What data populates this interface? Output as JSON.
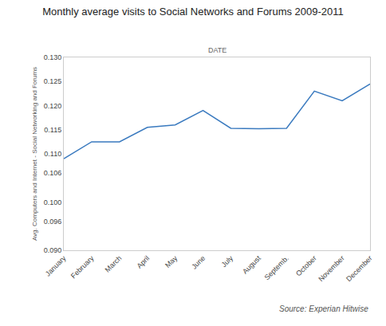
{
  "chart_data": {
    "type": "line",
    "title": "Monthly average visits to Social Networks and Forums 2009-2011",
    "xlabel": "DATE",
    "ylabel": "Avg. Computers and Internet - Social Networking and Forums",
    "annotations": [
      "Source: Experian Hitwise"
    ],
    "categories": [
      "January",
      "February",
      "March",
      "April",
      "May",
      "June",
      "July",
      "August",
      "Septemb.",
      "October",
      "November",
      "December"
    ],
    "values": [
      0.109,
      0.1125,
      0.1125,
      0.1155,
      0.116,
      0.119,
      0.1153,
      0.1152,
      0.1153,
      0.123,
      0.121,
      0.1245
    ],
    "color": "#3a7abf",
    "ylim": [
      0.09,
      0.13
    ],
    "yticks": [
      {
        "value": 0.09,
        "label": "0.090"
      },
      0.096,
      {
        "value": 0.1,
        "label": "0.100"
      },
      0.106,
      {
        "value": 0.11,
        "label": "0.110"
      },
      0.115,
      {
        "value": 0.12,
        "label": "0.120"
      },
      0.125,
      {
        "value": 0.13,
        "label": "0.130"
      }
    ],
    "grid": false
  }
}
